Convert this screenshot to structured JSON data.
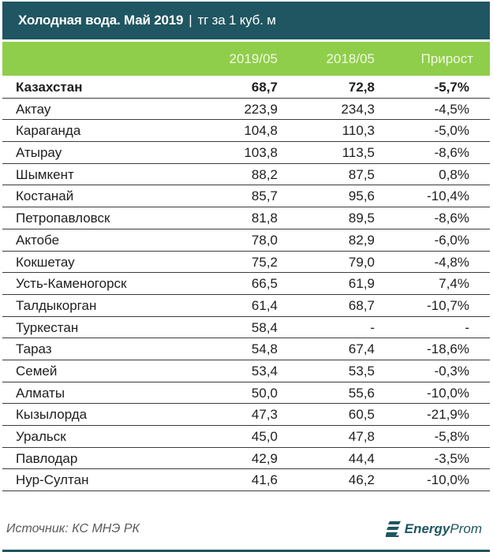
{
  "title": {
    "main": "Холодная вода. Май 2019",
    "separator": "|",
    "unit": "тг за 1 куб. м"
  },
  "columns": {
    "name": "",
    "v2019": "2019/05",
    "v2018": "2018/05",
    "growth": "Прирост"
  },
  "rows": [
    {
      "name": "Казахстан",
      "v2019": "68,7",
      "v2018": "72,8",
      "growth": "-5,7%"
    },
    {
      "name": "Актау",
      "v2019": "223,9",
      "v2018": "234,3",
      "growth": "-4,5%"
    },
    {
      "name": "Караганда",
      "v2019": "104,8",
      "v2018": "110,3",
      "growth": "-5,0%"
    },
    {
      "name": "Атырау",
      "v2019": "103,8",
      "v2018": "113,5",
      "growth": "-8,6%"
    },
    {
      "name": "Шымкент",
      "v2019": "88,2",
      "v2018": "87,5",
      "growth": "0,8%"
    },
    {
      "name": "Костанай",
      "v2019": "85,7",
      "v2018": "95,6",
      "growth": "-10,4%"
    },
    {
      "name": "Петропавловск",
      "v2019": "81,8",
      "v2018": "89,5",
      "growth": "-8,6%"
    },
    {
      "name": "Актобе",
      "v2019": "78,0",
      "v2018": "82,9",
      "growth": "-6,0%"
    },
    {
      "name": "Кокшетау",
      "v2019": "75,2",
      "v2018": "79,0",
      "growth": "-4,8%"
    },
    {
      "name": "Усть-Каменогорск",
      "v2019": "66,5",
      "v2018": "61,9",
      "growth": "7,4%"
    },
    {
      "name": "Талдыкорган",
      "v2019": "61,4",
      "v2018": "68,7",
      "growth": "-10,7%"
    },
    {
      "name": "Туркестан",
      "v2019": "58,4",
      "v2018": "-",
      "growth": "-"
    },
    {
      "name": "Тараз",
      "v2019": "54,8",
      "v2018": "67,4",
      "growth": "-18,6%"
    },
    {
      "name": "Семей",
      "v2019": "53,4",
      "v2018": "53,5",
      "growth": "-0,3%"
    },
    {
      "name": "Алматы",
      "v2019": "50,0",
      "v2018": "55,6",
      "growth": "-10,0%"
    },
    {
      "name": "Кызылорда",
      "v2019": "47,3",
      "v2018": "60,5",
      "growth": "-21,9%"
    },
    {
      "name": "Уральск",
      "v2019": "45,0",
      "v2018": "47,8",
      "growth": "-5,8%"
    },
    {
      "name": "Павлодар",
      "v2019": "42,9",
      "v2018": "44,4",
      "growth": "-3,5%"
    },
    {
      "name": "Нур-Султан",
      "v2019": "41,6",
      "v2018": "46,2",
      "growth": "-10,0%"
    }
  ],
  "footer": {
    "source": "Источник: КС МНЭ РК",
    "logo_bold": "Energy",
    "logo_light": "Prom",
    "logo_icon": "energyprom-logo-icon"
  },
  "colors": {
    "title_bg": "#1f5661",
    "header_bg": "#8fce4a",
    "header_text": "#f2f8e6",
    "row_line": "#3c3c3c",
    "text": "#1e1e1e"
  }
}
